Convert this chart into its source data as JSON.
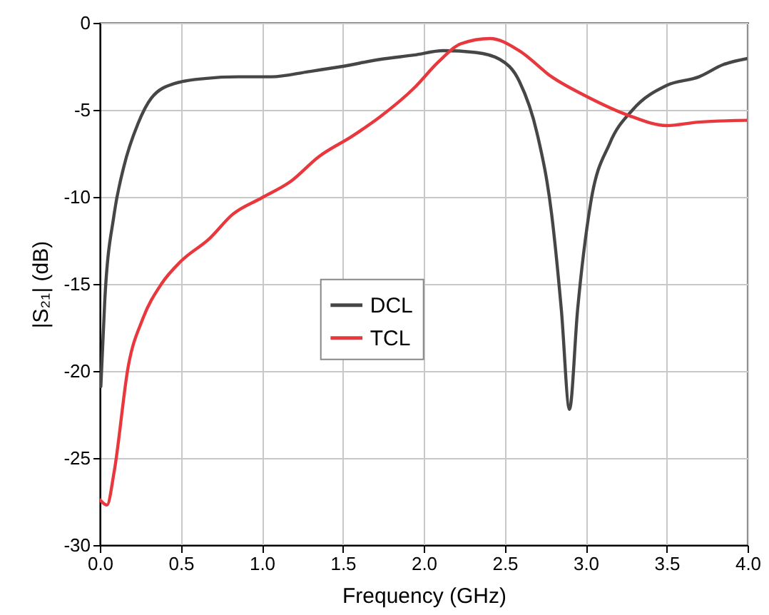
{
  "chart_data": {
    "type": "line",
    "xlabel": "Frequency (GHz)",
    "ylabel": "|S₂₁| (dB)",
    "xlim": [
      0,
      4
    ],
    "xticks": [
      {
        "value": 0,
        "label": "0.0"
      },
      0.5,
      {
        "value": 1,
        "label": "1.0"
      },
      1.5,
      {
        "value": 2,
        "label": "2.0"
      },
      2.5,
      {
        "value": 3,
        "label": "3.0"
      },
      3.5,
      {
        "value": 4,
        "label": "4.0"
      }
    ],
    "ylim": [
      -30,
      0
    ],
    "yticks": [
      -30,
      -25,
      -20,
      -15,
      -10,
      -5,
      0
    ],
    "grid": true,
    "legend": "center",
    "line_style": "solid",
    "marker": "none",
    "series": [
      {
        "name": "DCL",
        "color": "#464646",
        "x": [
          0.006,
          0.03,
          0.088,
          0.147,
          0.235,
          0.32,
          0.456,
          0.646,
          0.853,
          1.06,
          1.29,
          1.5,
          1.73,
          1.94,
          2.12,
          2.32,
          2.47,
          2.59,
          2.7,
          2.79,
          2.85,
          2.9,
          2.95,
          3.03,
          3.15,
          3.29,
          3.5,
          3.7,
          3.85,
          4.0
        ],
        "values": [
          -20.9,
          -16,
          -11,
          -8.3,
          -5.8,
          -4.3,
          -3.5,
          -3.2,
          -3.1,
          -3.1,
          -2.8,
          -2.5,
          -2.1,
          -1.85,
          -1.6,
          -1.7,
          -2.1,
          -3.35,
          -6.35,
          -11,
          -16.5,
          -22.2,
          -16.5,
          -10.4,
          -6.9,
          -5,
          -3.6,
          -3.1,
          -2.4,
          -2.05
        ]
      },
      {
        "name": "TCL",
        "color": "#e8383d",
        "x": [
          0,
          0.044,
          0.088,
          0.176,
          0.265,
          0.38,
          0.5,
          0.676,
          0.82,
          1.0,
          1.18,
          1.35,
          1.56,
          1.73,
          1.94,
          2.09,
          2.23,
          2.41,
          2.59,
          2.79,
          3.0,
          3.26,
          3.5,
          3.7,
          4.0
        ],
        "values": [
          -27.4,
          -27.7,
          -25.8,
          -19.7,
          -17,
          -15,
          -13.7,
          -12.4,
          -11,
          -10.05,
          -9.1,
          -7.7,
          -6.5,
          -5.4,
          -3.75,
          -2.25,
          -1.2,
          -0.9,
          -1.6,
          -3.1,
          -4.2,
          -5.3,
          -5.9,
          -5.7,
          -5.6
        ]
      }
    ]
  }
}
